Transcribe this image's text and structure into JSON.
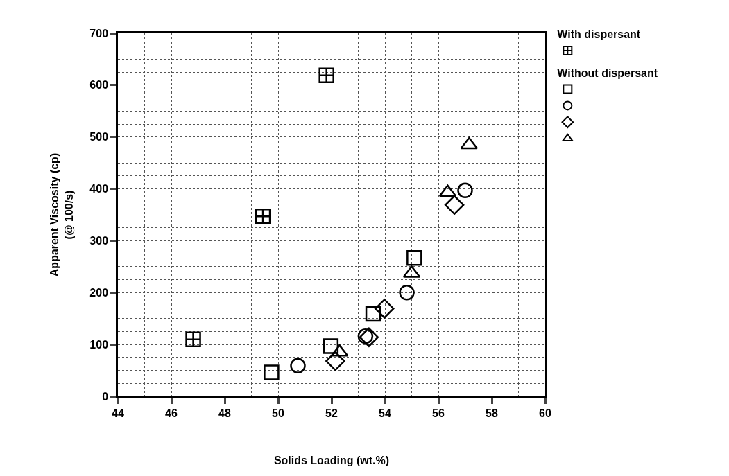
{
  "chart_data": {
    "type": "scatter",
    "xlabel": "Solids Loading (wt.%)",
    "ylabel": "Apparent Viscosity (cp)\n(@ 100/s)",
    "xlim": [
      44,
      60
    ],
    "xticks": [
      44,
      46,
      48,
      50,
      52,
      54,
      56,
      58,
      60
    ],
    "ylim": [
      0,
      700
    ],
    "yticks": [
      0,
      100,
      200,
      300,
      400,
      500,
      600,
      700
    ],
    "grid": true,
    "legend": "top right",
    "series": [
      {
        "name": "With dispersant",
        "color": "#000000",
        "marker": "cross",
        "x": [
          46.82,
          49.43,
          51.81
        ],
        "values": [
          110,
          347,
          619
        ]
      },
      {
        "name": "Without dispersant",
        "color": "#000000",
        "marker": "square",
        "x": [
          49.75,
          51.97,
          53.56,
          55.1
        ],
        "values": [
          46,
          97,
          159,
          267
        ]
      },
      {
        "color": "#000000",
        "marker": "circle",
        "x": [
          50.74,
          53.27,
          54.82,
          57.0
        ],
        "values": [
          59,
          116,
          200,
          397
        ]
      },
      {
        "color": "#000000",
        "marker": "diamond",
        "x": [
          52.14,
          53.4,
          53.98,
          56.6
        ],
        "values": [
          68,
          114,
          169,
          369
        ]
      },
      {
        "color": "#000000",
        "marker": "triangle",
        "x": [
          52.3,
          55.0,
          56.35,
          57.15
        ],
        "values": [
          85,
          237,
          393,
          485
        ]
      }
    ]
  }
}
